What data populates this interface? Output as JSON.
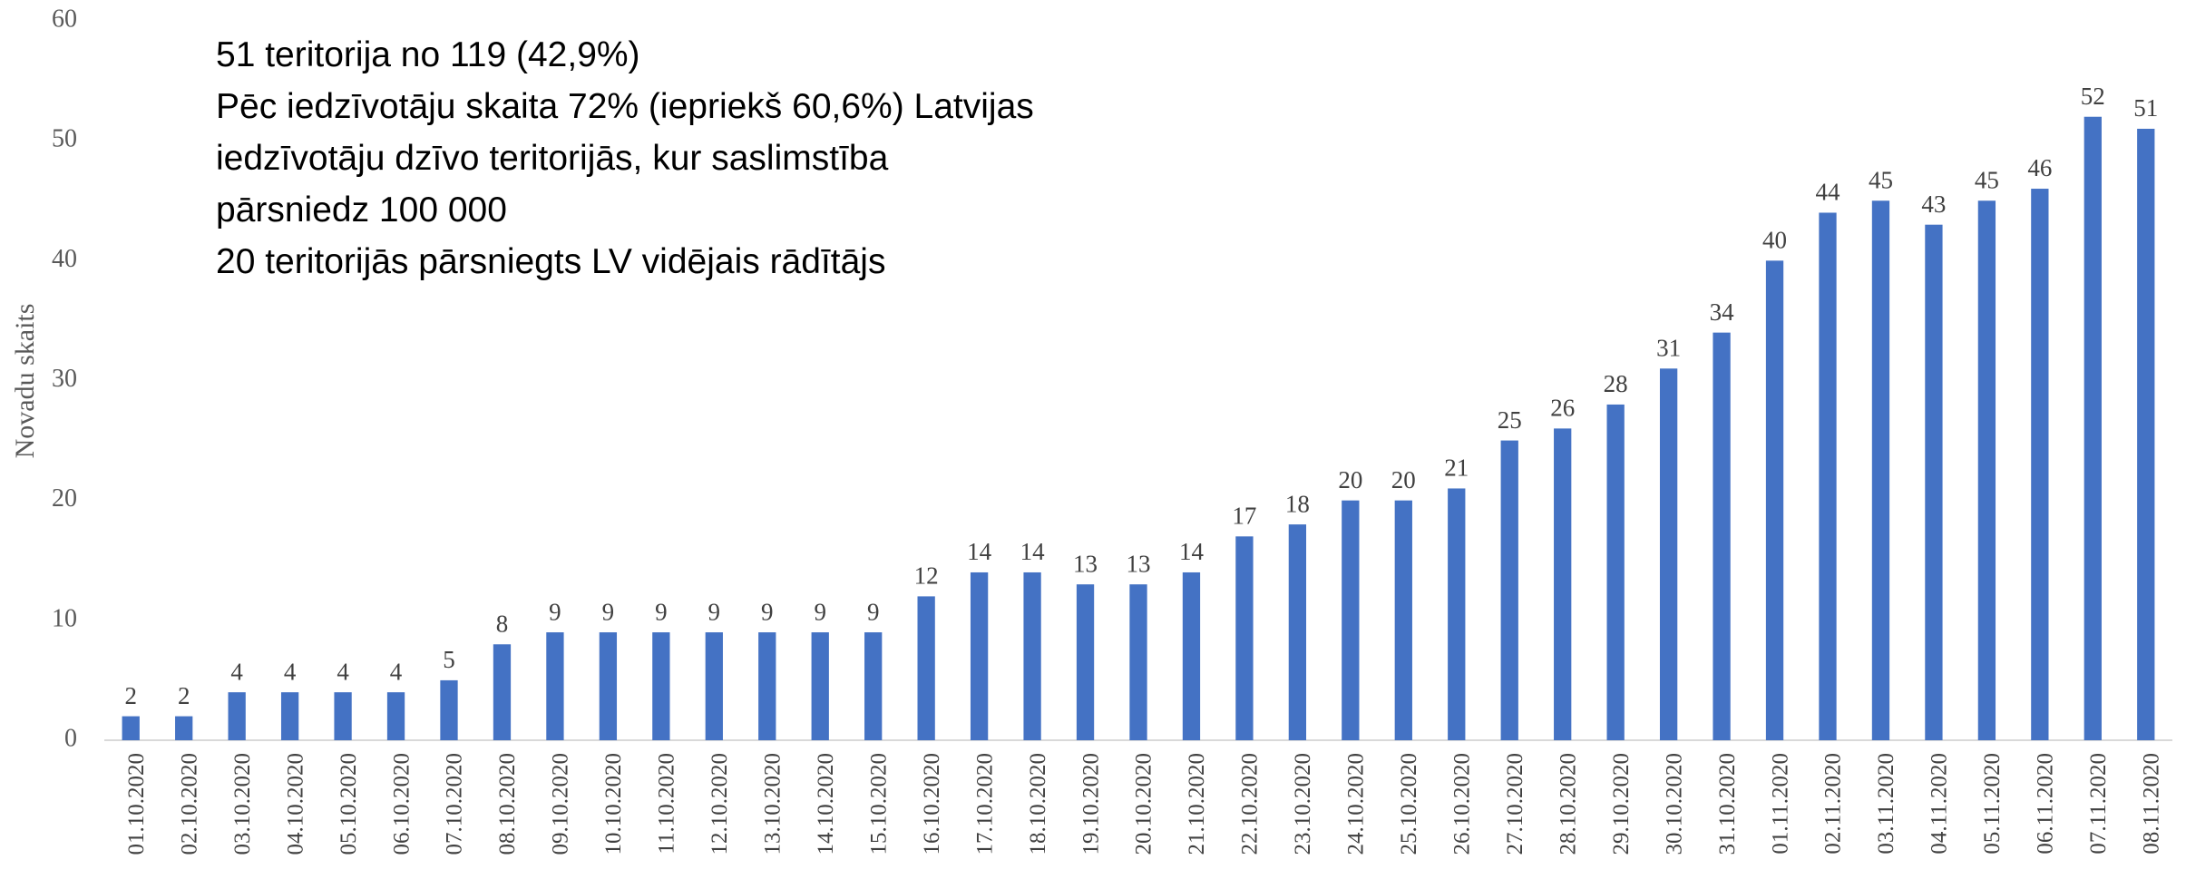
{
  "chart_data": {
    "type": "bar",
    "y_axis_label": "Novadu skaits",
    "annotations": [
      "51 teritorija no 119 (42,9%)",
      "Pēc iedzīvotāju skaita 72% (iepriekš 60,6%) Latvijas",
      "iedzīvotāju dzīvo teritorijās, kur saslimstība",
      "pārsniedz 100 000",
      "20 teritorijās pārsniegts LV  vidējais rādītājs"
    ],
    "categories": [
      "01.10.2020",
      "02.10.2020",
      "03.10.2020",
      "04.10.2020",
      "05.10.2020",
      "06.10.2020",
      "07.10.2020",
      "08.10.2020",
      "09.10.2020",
      "10.10.2020",
      "11.10.2020",
      "12.10.2020",
      "13.10.2020",
      "14.10.2020",
      "15.10.2020",
      "16.10.2020",
      "17.10.2020",
      "18.10.2020",
      "19.10.2020",
      "20.10.2020",
      "21.10.2020",
      "22.10.2020",
      "23.10.2020",
      "24.10.2020",
      "25.10.2020",
      "26.10.2020",
      "27.10.2020",
      "28.10.2020",
      "29.10.2020",
      "30.10.2020",
      "31.10.2020",
      "01.11.2020",
      "02.11.2020",
      "03.11.2020",
      "04.11.2020",
      "05.11.2020",
      "06.11.2020",
      "07.11.2020",
      "08.11.2020"
    ],
    "values": [
      2,
      2,
      4,
      4,
      4,
      4,
      5,
      8,
      9,
      9,
      9,
      9,
      9,
      9,
      9,
      12,
      14,
      14,
      13,
      13,
      14,
      17,
      18,
      20,
      20,
      21,
      25,
      26,
      28,
      31,
      34,
      40,
      44,
      45,
      43,
      45,
      46,
      52,
      51
    ],
    "color": "#4472c4",
    "ylim": [
      0,
      60
    ],
    "yticks": [
      0,
      10,
      20,
      30,
      40,
      50,
      60
    ],
    "grid": false
  }
}
